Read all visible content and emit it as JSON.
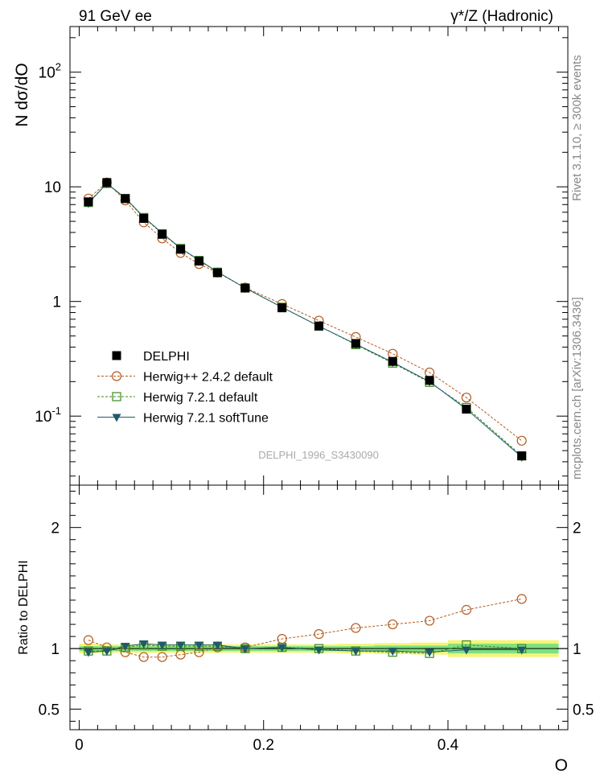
{
  "header": {
    "left": "91 GeV ee",
    "right": "γ*/Z (Hadronic)"
  },
  "side_labels": {
    "rivet": "Rivet 3.1.10, ≥ 300k events",
    "mcplots": "mcplots.cern.ch [arXiv:1306.3436]"
  },
  "watermark": "DELPHI_1996_S3430090",
  "chart_data": [
    {
      "type": "line",
      "title": "",
      "ylabel": "N dσ/dO",
      "yscale": "log",
      "ylim": [
        0.025,
        250
      ],
      "xlim": [
        -0.01,
        0.53
      ],
      "ytick_labels": [
        "10^2",
        "10",
        "1",
        "10^-1"
      ],
      "x": [
        0.01,
        0.03,
        0.05,
        0.07,
        0.09,
        0.11,
        0.13,
        0.15,
        0.18,
        0.22,
        0.26,
        0.3,
        0.34,
        0.38,
        0.42,
        0.48
      ],
      "series": [
        {
          "name": "DELPHI",
          "color": "#000000",
          "marker": "filled-square",
          "values": [
            7.4,
            10.9,
            7.9,
            5.3,
            3.85,
            2.85,
            2.25,
            1.78,
            1.31,
            0.88,
            0.61,
            0.43,
            0.3,
            0.205,
            0.115,
            0.045
          ]
        },
        {
          "name": "Herwig++ 2.4.2 default",
          "color": "#b35a1f",
          "marker": "open-circle",
          "values": [
            7.9,
            10.9,
            7.6,
            4.9,
            3.55,
            2.65,
            2.12,
            1.79,
            1.32,
            0.95,
            0.68,
            0.49,
            0.35,
            0.24,
            0.145,
            0.061
          ]
        },
        {
          "name": "Herwig 7.2.1 default",
          "color": "#3a8a1e",
          "marker": "open-square",
          "values": [
            7.3,
            10.7,
            7.9,
            5.4,
            3.9,
            2.9,
            2.28,
            1.8,
            1.31,
            0.89,
            0.61,
            0.42,
            0.29,
            0.197,
            0.119,
            0.045
          ]
        },
        {
          "name": "Herwig 7.2.1 softTune",
          "color": "#1f5a6b",
          "marker": "filled-triangle-down",
          "values": [
            7.2,
            10.7,
            8.0,
            5.45,
            3.95,
            2.92,
            2.3,
            1.81,
            1.31,
            0.89,
            0.61,
            0.425,
            0.295,
            0.2,
            0.115,
            0.044
          ]
        }
      ]
    },
    {
      "type": "line",
      "ylabel": "Ratio to DELPHI",
      "xlabel": "O",
      "ylim": [
        0.33,
        2.35
      ],
      "xlim": [
        -0.01,
        0.53
      ],
      "ytick_labels": [
        "2",
        "1",
        "0.5"
      ],
      "xtick_labels": [
        "0",
        "0.2",
        "0.4"
      ],
      "x": [
        0.01,
        0.03,
        0.05,
        0.07,
        0.09,
        0.11,
        0.13,
        0.15,
        0.18,
        0.22,
        0.26,
        0.3,
        0.34,
        0.38,
        0.42,
        0.48
      ],
      "band": {
        "edges": [
          0.0,
          0.02,
          0.04,
          0.06,
          0.08,
          0.1,
          0.12,
          0.14,
          0.16,
          0.2,
          0.24,
          0.28,
          0.32,
          0.36,
          0.4,
          0.44,
          0.52
        ],
        "inner": [
          0.02,
          0.02,
          0.02,
          0.02,
          0.02,
          0.02,
          0.02,
          0.02,
          0.02,
          0.02,
          0.02,
          0.02,
          0.025,
          0.025,
          0.04,
          0.04
        ],
        "outer": [
          0.04,
          0.035,
          0.035,
          0.035,
          0.035,
          0.035,
          0.035,
          0.035,
          0.035,
          0.035,
          0.035,
          0.04,
          0.045,
          0.05,
          0.07,
          0.07
        ],
        "inner_color": "#7fe07f",
        "outer_color": "#f4f47a"
      },
      "series": [
        {
          "name": "Herwig++ 2.4.2 default",
          "color": "#b35a1f",
          "marker": "open-circle",
          "values": [
            1.07,
            1.01,
            0.97,
            0.93,
            0.93,
            0.95,
            0.97,
            1.01,
            1.01,
            1.08,
            1.12,
            1.17,
            1.2,
            1.23,
            1.32,
            1.41
          ]
        },
        {
          "name": "Herwig 7.2.1 default",
          "color": "#3a8a1e",
          "marker": "open-square",
          "values": [
            0.98,
            0.98,
            1.01,
            1.03,
            1.02,
            1.02,
            1.02,
            1.02,
            1.0,
            1.01,
            1.0,
            0.98,
            0.97,
            0.96,
            1.03,
            1.0
          ]
        },
        {
          "name": "Herwig 7.2.1 softTune",
          "color": "#1f5a6b",
          "marker": "filled-triangle-down",
          "values": [
            0.97,
            0.98,
            1.02,
            1.04,
            1.03,
            1.03,
            1.03,
            1.03,
            1.0,
            1.01,
            0.99,
            0.98,
            0.98,
            0.97,
            0.99,
            0.99
          ]
        }
      ]
    }
  ]
}
